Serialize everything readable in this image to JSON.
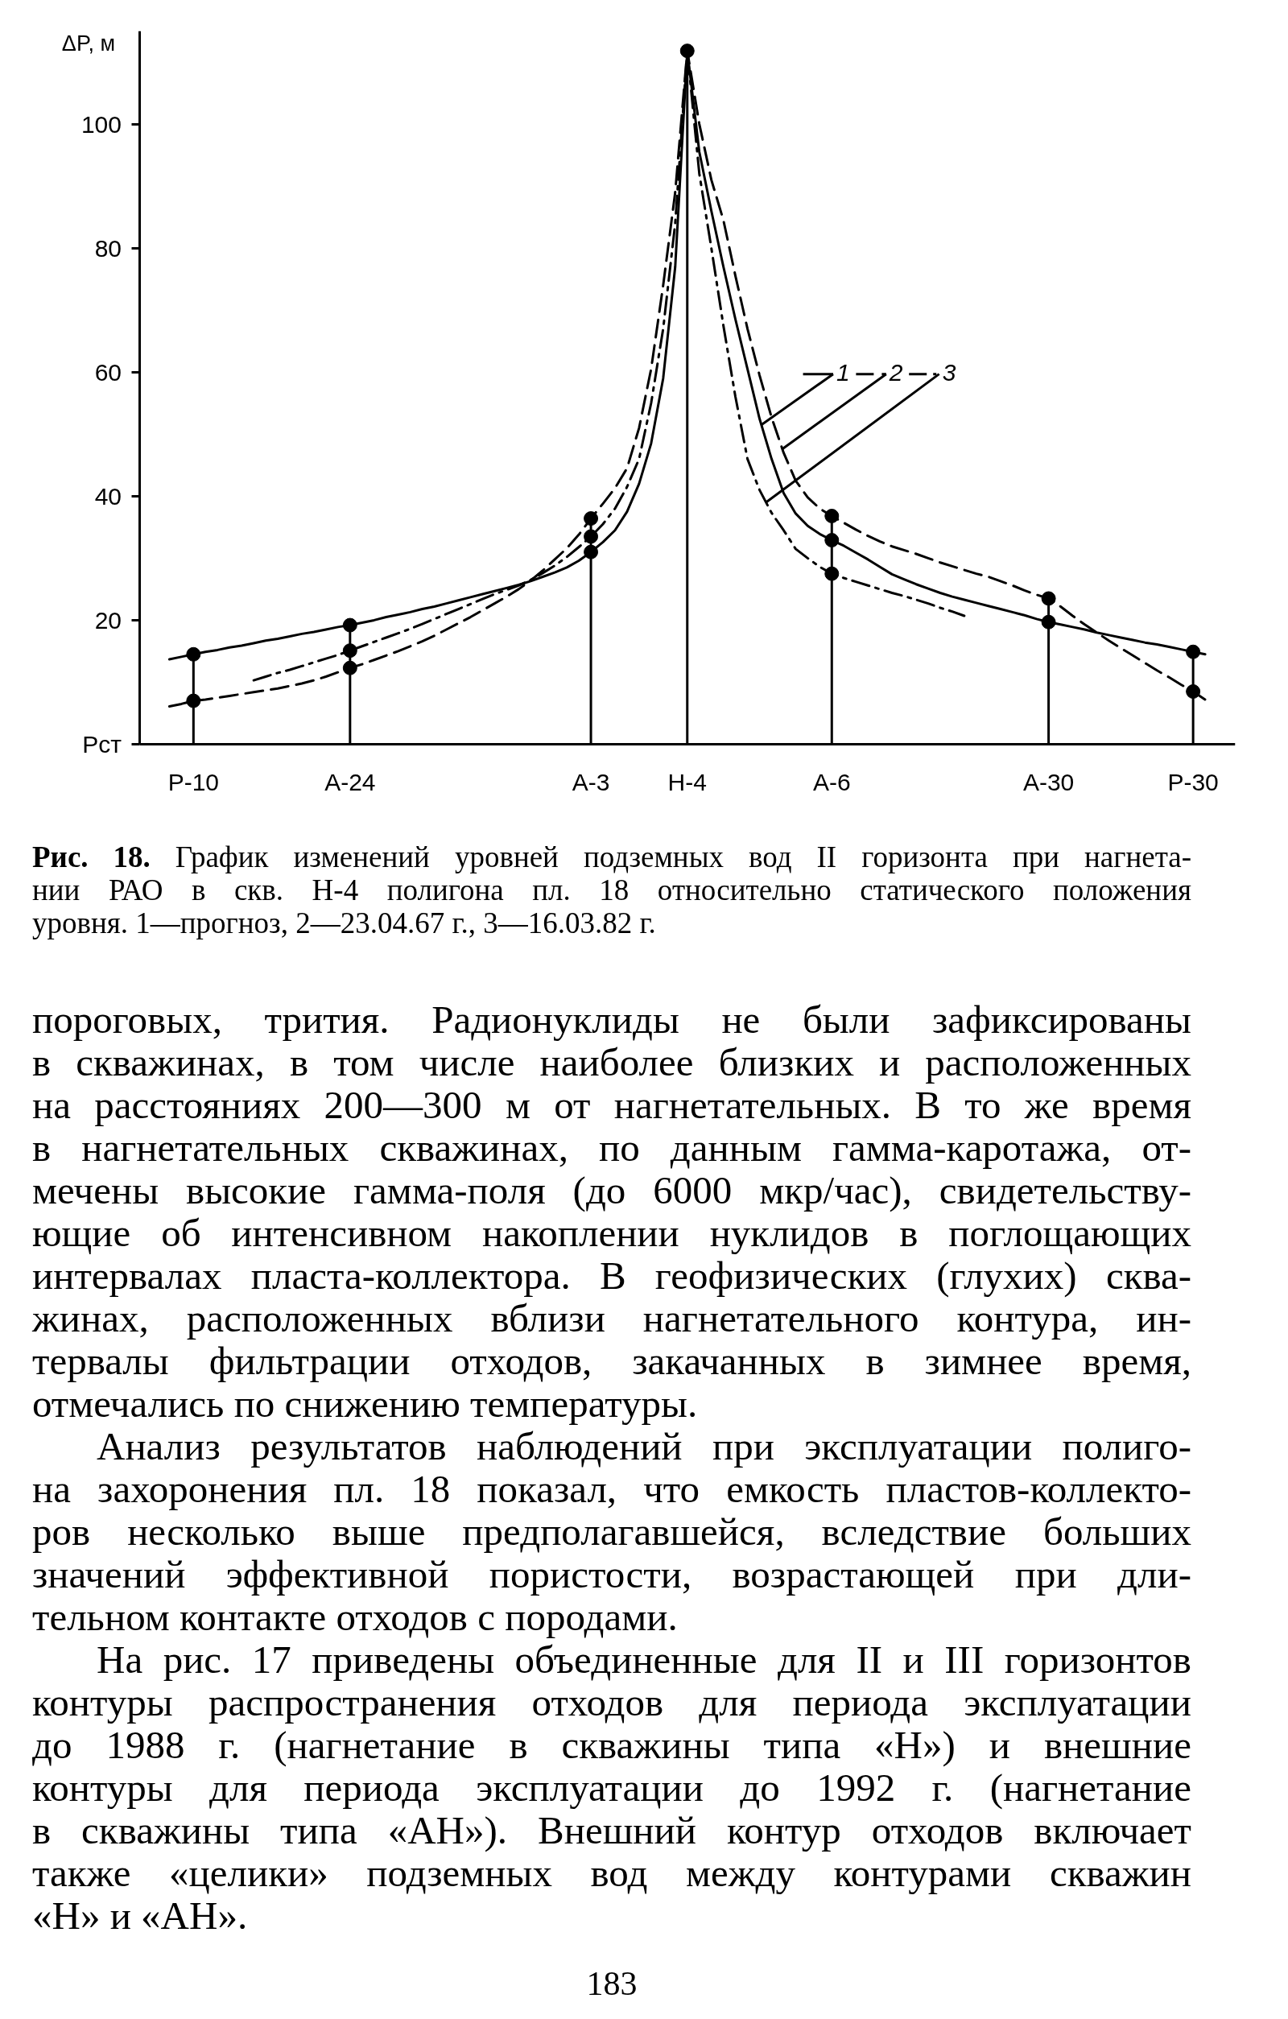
{
  "chart_data": {
    "type": "line",
    "ylabel": "ΔP, м",
    "categories": [
      null,
      null,
      null,
      null,
      "Р-10",
      null,
      null,
      null,
      null,
      null,
      null,
      null,
      null,
      null,
      null,
      null,
      null,
      "А-24",
      null,
      null,
      null,
      null,
      null,
      null,
      null,
      null,
      null,
      null,
      null,
      null,
      null,
      null,
      null,
      null,
      null,
      null,
      null,
      "А-3",
      null,
      null,
      null,
      null,
      null,
      null,
      null,
      "Н-4",
      null,
      null,
      null,
      null,
      null,
      null,
      null,
      null,
      null,
      null,
      null,
      "А-6",
      null,
      null,
      null,
      null,
      null,
      null,
      null,
      null,
      null,
      null,
      null,
      null,
      null,
      null,
      null,
      null,
      null,
      "А-30",
      null,
      null,
      null,
      null,
      null,
      null,
      null,
      null,
      null,
      null,
      null,
      "Р-30",
      null,
      null,
      null
    ],
    "ylim": [
      0,
      115
    ],
    "yticks": [
      {
        "value": 0,
        "label": "Pст"
      },
      20,
      40,
      60,
      80,
      100
    ],
    "grid": false,
    "legend": "right",
    "series": [
      {
        "name": "1",
        "color": "#000000",
        "line_style": "solid",
        "values": [
          null,
          null,
          13.7,
          14.1,
          14.5,
          14.9,
          15.2,
          15.6,
          15.9,
          16.3,
          16.7,
          17.0,
          17.4,
          17.8,
          18.1,
          18.5,
          18.9,
          19.2,
          19.6,
          20.0,
          20.5,
          20.9,
          21.3,
          21.8,
          22.2,
          22.7,
          23.2,
          23.7,
          24.2,
          24.7,
          25.2,
          25.7,
          26.3,
          27.0,
          27.7,
          28.5,
          29.6,
          31.0,
          32.6,
          34.5,
          37.5,
          42,
          48.5,
          59,
          77,
          111.8,
          95.5,
          86,
          77,
          68.5,
          60.5,
          52.5,
          46,
          40.5,
          37.2,
          35.2,
          33.9,
          32.9,
          32.0,
          30.9,
          29.8,
          28.6,
          27.4,
          26.6,
          25.8,
          25.1,
          24.4,
          23.8,
          23.3,
          22.8,
          22.3,
          21.8,
          21.3,
          20.8,
          20.2,
          19.7,
          19.3,
          18.9,
          18.5,
          18.0,
          17.6,
          17.2,
          16.8,
          16.4,
          16.1,
          15.7,
          15.3,
          14.9,
          14.5,
          null,
          null
        ]
      },
      {
        "name": "2",
        "color": "#000000",
        "line_style": "dashed",
        "values": [
          null,
          null,
          6.1,
          6.5,
          7.0,
          7.2,
          7.5,
          7.8,
          8.1,
          8.4,
          8.7,
          9.0,
          9.4,
          9.8,
          10.3,
          10.9,
          11.6,
          12.3,
          12.9,
          13.6,
          14.3,
          15.0,
          15.8,
          16.6,
          17.5,
          18.5,
          19.5,
          20.5,
          21.6,
          22.7,
          23.8,
          25.0,
          26.4,
          28.0,
          29.8,
          31.6,
          33.8,
          36.4,
          38.8,
          41.3,
          44.5,
          51,
          60.5,
          74,
          89,
          111.8,
          100,
          91,
          84.5,
          75.5,
          67,
          59.5,
          52.7,
          47,
          42.5,
          39.8,
          38.0,
          36.8,
          35.7,
          34.6,
          33.6,
          32.7,
          31.9,
          31.3,
          30.7,
          30.0,
          29.3,
          28.7,
          28.1,
          27.5,
          27.0,
          26.3,
          25.6,
          24.8,
          24.1,
          23.5,
          22.2,
          20.7,
          19.3,
          18.0,
          16.7,
          15.5,
          14.3,
          13.1,
          11.9,
          10.8,
          9.6,
          8.5,
          7.2,
          null,
          null
        ]
      },
      {
        "name": "3",
        "color": "#000000",
        "line_style": "dashdot",
        "values": [
          null,
          null,
          null,
          null,
          null,
          null,
          null,
          null,
          null,
          10.3,
          10.9,
          11.5,
          12.0,
          12.6,
          13.2,
          13.8,
          14.4,
          15.1,
          15.8,
          16.5,
          17.2,
          17.9,
          18.6,
          19.4,
          20.2,
          21.0,
          21.8,
          22.6,
          23.4,
          24.2,
          24.9,
          25.6,
          26.5,
          27.6,
          28.8,
          30.2,
          31.8,
          33.5,
          35.5,
          38.0,
          41.5,
          46,
          55,
          67,
          84,
          111.8,
          92,
          80,
          67.5,
          56,
          46,
          41,
          37.3,
          34.5,
          31.5,
          30.0,
          28.6,
          27.5,
          26.8,
          26.2,
          25.6,
          25.0,
          24.4,
          23.9,
          23.3,
          22.7,
          22.0,
          21.4,
          20.7,
          null,
          null,
          null,
          null,
          null,
          null,
          null,
          null,
          null,
          null,
          null,
          null,
          null,
          null,
          null,
          null,
          null,
          null,
          null,
          null,
          null,
          null
        ]
      },
      {
        "type": "lollipop",
        "color": "#000000",
        "marker": "circle",
        "values": [
          null,
          null,
          null,
          null,
          14.5,
          null,
          null,
          null,
          null,
          null,
          null,
          null,
          null,
          null,
          null,
          null,
          null,
          19.2,
          null,
          null,
          null,
          null,
          null,
          null,
          null,
          null,
          null,
          null,
          null,
          null,
          null,
          null,
          null,
          null,
          null,
          null,
          null,
          36.4,
          null,
          null,
          null,
          null,
          null,
          null,
          null,
          111.8,
          null,
          null,
          null,
          null,
          null,
          null,
          null,
          null,
          null,
          null,
          null,
          36.8,
          null,
          null,
          null,
          null,
          null,
          null,
          null,
          null,
          null,
          null,
          null,
          null,
          null,
          null,
          null,
          null,
          null,
          23.5,
          null,
          null,
          null,
          null,
          null,
          null,
          null,
          null,
          null,
          null,
          null,
          14.9,
          null,
          null,
          null
        ]
      },
      {
        "type": "scatter",
        "color": "#000000",
        "marker": "circle",
        "values": [
          null,
          null,
          null,
          null,
          7.0,
          null,
          null,
          null,
          null,
          null,
          null,
          null,
          null,
          null,
          null,
          null,
          null,
          15.1,
          null,
          null,
          null,
          null,
          null,
          null,
          null,
          null,
          null,
          null,
          null,
          null,
          null,
          null,
          null,
          null,
          null,
          null,
          null,
          33.5,
          null,
          null,
          null,
          null,
          null,
          null,
          null,
          null,
          null,
          null,
          null,
          null,
          null,
          null,
          null,
          null,
          null,
          null,
          null,
          32.9,
          null,
          null,
          null,
          null,
          null,
          null,
          null,
          null,
          null,
          null,
          null,
          null,
          null,
          null,
          null,
          null,
          null,
          19.7,
          null,
          null,
          null,
          null,
          null,
          null,
          null,
          null,
          null,
          null,
          null,
          8.5,
          null,
          null,
          null
        ]
      },
      {
        "type": "scatter",
        "color": "#000000",
        "marker": "circle",
        "values": [
          null,
          null,
          null,
          null,
          null,
          null,
          null,
          null,
          null,
          null,
          null,
          null,
          null,
          null,
          null,
          null,
          null,
          12.3,
          null,
          null,
          null,
          null,
          null,
          null,
          null,
          null,
          null,
          null,
          null,
          null,
          null,
          null,
          null,
          null,
          null,
          null,
          null,
          31.0,
          null,
          null,
          null,
          null,
          null,
          null,
          null,
          null,
          null,
          null,
          null,
          null,
          null,
          null,
          null,
          null,
          null,
          null,
          null,
          27.5,
          null,
          null,
          null,
          null,
          null,
          null,
          null,
          null,
          null,
          null,
          null,
          null,
          null,
          null,
          null,
          null,
          null,
          null,
          null,
          null,
          null,
          null,
          null,
          null,
          null,
          null,
          null,
          null,
          null,
          null,
          null,
          null,
          null
        ]
      }
    ],
    "annotations": [
      "Рис. 18. График изменений уровней подземных вод II горизонта при нагнета-\nнии РАО в скв. Н-4 полигона пл. 18 относительно статического положения\nуровня. 1—прогноз, 2—23.04.67 г., 3—16.03.82 г.",
      "пороговых, трития. Радионуклиды не были зафиксированы\nв скважинах, в том числе наиболее близких и расположенных\nна расстояниях 200—300 м от нагнетательных. В то же время\nв нагнетательных скважинах, по данным гамма-каротажа, от-\nмечены высокие гамма-поля (до 6000 мкр/час), свидетельству-\nющие об интенсивном накоплении нуклидов в поглощающих\nинтервалах пласта-коллектора. В геофизических (глухих) сква-\nжинах, расположенных вблизи нагнетательного контура, ин-\nтервалы фильтрации отходов, закачанных в зимнее время,\nотмечались по снижению температуры.",
      "Анализ результатов наблюдений при эксплуатации полиго-\nна захоронения пл. 18 показал, что емкость пластов-коллекто-\nров несколько выше предполагавшейся, вследствие больших\nзначений эффективной пористости, возрастающей при дли-\nтельном контакте отходов с породами.",
      "На рис. 17 приведены объединенные для II и III горизонтов\nконтуры распространения отходов для периода эксплуатации\nдо 1988 г. (нагнетание в скважины типа «Н») и внешние\nконтуры для периода эксплуатации до 1992 г. (нагнетание\nв скважины типа «АН»). Внешний контур отходов включает\nтакже «целики» подземных вод между контурами скважин\n«Н» и «АН».",
      "183"
    ]
  }
}
